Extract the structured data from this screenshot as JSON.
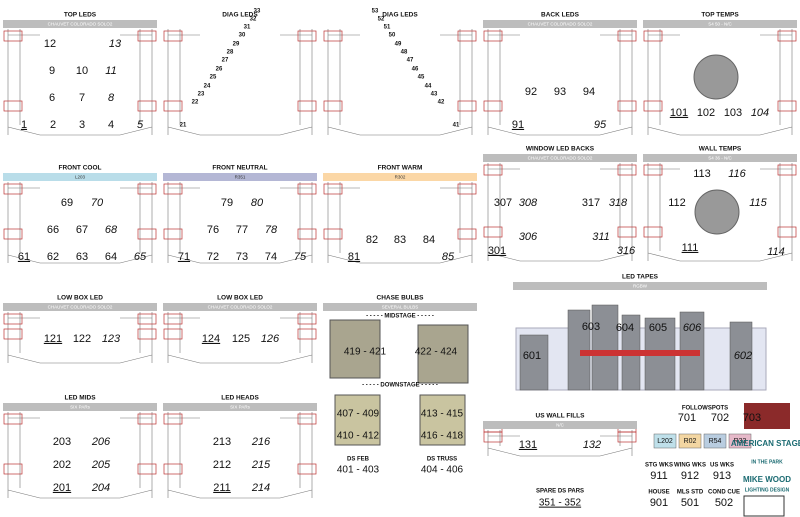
{
  "sections": [
    {
      "title": "TOP LEDS",
      "subtitle": "CHAUVET COLORADO SOLO2",
      "items": [
        "12",
        "13",
        "9",
        "10",
        "11",
        "6",
        "7",
        "8",
        "1",
        "2",
        "3",
        "4",
        "5"
      ]
    },
    {
      "title": "DIAG LEDS",
      "items": [
        "33",
        "32",
        "31",
        "30",
        "29",
        "28",
        "27",
        "26",
        "25",
        "24",
        "23",
        "22",
        "21"
      ]
    },
    {
      "title": "DIAG LEDS",
      "items": [
        "53",
        "52",
        "51",
        "50",
        "49",
        "48",
        "47",
        "46",
        "45",
        "44",
        "43",
        "42",
        "41"
      ]
    },
    {
      "title": "BACK LEDS",
      "subtitle": "CHAUVET COLORADO SOLO2",
      "items": [
        "92",
        "93",
        "94",
        "91",
        "95"
      ]
    },
    {
      "title": "TOP TEMPS",
      "subtitle": "S4 50 - N/C",
      "items": [
        "101",
        "102",
        "103",
        "104"
      ]
    },
    {
      "title": "FRONT COOL",
      "subtitle": "L203",
      "items": [
        "69",
        "70",
        "66",
        "67",
        "68",
        "61",
        "62",
        "63",
        "64",
        "65"
      ]
    },
    {
      "title": "FRONT NEUTRAL",
      "subtitle": "R351",
      "items": [
        "79",
        "80",
        "76",
        "77",
        "78",
        "71",
        "72",
        "73",
        "74",
        "75"
      ]
    },
    {
      "title": "FRONT WARM",
      "subtitle": "R302",
      "items": [
        "82",
        "83",
        "84",
        "81",
        "85"
      ]
    },
    {
      "title": "WINDOW LED BACKS",
      "subtitle": "CHAUVET COLORADO SOLO2",
      "items": [
        "307",
        "308",
        "317",
        "318",
        "306",
        "311",
        "301",
        "316"
      ]
    },
    {
      "title": "WALL TEMPS",
      "subtitle": "S4 36 - N/C",
      "items": [
        "113",
        "116",
        "112",
        "115",
        "111",
        "114"
      ]
    },
    {
      "title": "LED TAPES",
      "subtitle": "RGBW",
      "items": [
        "601",
        "603",
        "604",
        "605",
        "606",
        "602"
      ]
    },
    {
      "title": "LOW BOX LED",
      "subtitle": "CHAUVET COLORADO SOLO2",
      "items": [
        "121",
        "122",
        "123"
      ]
    },
    {
      "title": "LOW BOX LED",
      "subtitle": "CHAUVET COLORADO SOLO2",
      "items": [
        "124",
        "125",
        "126"
      ]
    },
    {
      "title": "CHASE BULBS",
      "subtitle": "SEVERAL BULBS",
      "items": [
        "- - - - - MIDSTAGE - - - - -",
        "419 - 421",
        "422 - 424",
        "- - - - - DOWNSTAGE - - - - -",
        "407 - 409",
        "413 - 415",
        "410 - 412",
        "416 - 418",
        "DS FEB",
        "401 - 403",
        "DS TRUSS",
        "404 - 406"
      ]
    },
    {
      "title": "LED MIDS",
      "subtitle": "SIX PARs",
      "items": [
        "203",
        "206",
        "202",
        "205",
        "201",
        "204"
      ]
    },
    {
      "title": "LED HEADS",
      "subtitle": "SIX PARs",
      "items": [
        "213",
        "216",
        "212",
        "215",
        "211",
        "214"
      ]
    },
    {
      "title": "US WALL FILLS",
      "subtitle": "N/C",
      "items": [
        "131",
        "132"
      ]
    },
    {
      "items": [
        "SPARE DS PARS",
        "351 - 352"
      ]
    },
    {
      "title": "FOLLOWSPOTS",
      "items": [
        "701",
        "702",
        "703"
      ],
      "gels": [
        "L202",
        "R02",
        "R54",
        "R33"
      ]
    },
    {
      "items": [
        "STG WKS",
        "911",
        "WING WKS",
        "912",
        "US WKS",
        "913",
        "HOUSE",
        "901",
        "MLS STD",
        "501",
        "COND CUE",
        "502"
      ]
    },
    {
      "items": [
        "AMERICAN STAGE",
        "IN THE PARK",
        "MIKE WOOD",
        "LIGHTING DESIGN"
      ]
    }
  ]
}
